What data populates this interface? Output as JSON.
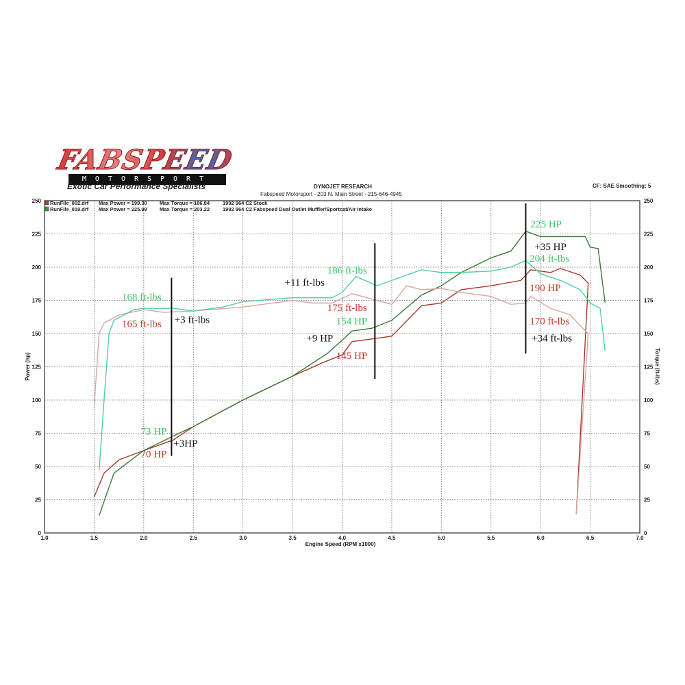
{
  "logo": {
    "brand": "FABSPEED",
    "sub": "MOTORSPORT",
    "tagline": "Exotic Car Performance Specialists"
  },
  "header": {
    "title": "DYNOJET RESEARCH",
    "address": "Fabspeed Motorsport - 203 N. Main Street - 215-646-4945",
    "settings": "CF: SAE  Smoothing: 5"
  },
  "chart_data": {
    "type": "line",
    "xlabel": "Engine Speed (RPM x1000)",
    "ylabel": "Power (hp)",
    "y2label": "Torque (ft-lbs)",
    "xlim": [
      1.0,
      7.0
    ],
    "ylim": [
      0,
      250
    ],
    "y2lim": [
      0,
      250
    ],
    "xticks": [
      "1.0",
      "1.5",
      "2.0",
      "2.5",
      "3.0",
      "3.5",
      "4.0",
      "4.5",
      "5.0",
      "5.5",
      "6.0",
      "6.5",
      "7.0"
    ],
    "yticks": [
      "0",
      "25",
      "50",
      "75",
      "100",
      "125",
      "150",
      "175",
      "200",
      "225",
      "250"
    ],
    "grid": true,
    "legend": [
      {
        "file": "RunFile_002.drf",
        "power": "Max Power = 199.30",
        "torque": "Max Torque = 186.84",
        "desc": "1992 964 C2 Stock",
        "color": "#c0392b"
      },
      {
        "file": "RunFile_019.drf",
        "power": "Max Power = 225.99",
        "torque": "Max Torque = 203.22",
        "desc": "1992 964 C2 Fabspeed Dual Outlet Muffler/Sportcat/Air Intake",
        "color": "#27a844"
      }
    ],
    "series": [
      {
        "key": "stock-power",
        "color": "#a8392c",
        "x": [
          1.5,
          1.6,
          1.75,
          2.0,
          2.3,
          2.5,
          3.0,
          3.5,
          3.8,
          4.0,
          4.1,
          4.3,
          4.5,
          4.8,
          5.0,
          5.2,
          5.5,
          5.8,
          5.9,
          6.1,
          6.2,
          6.4,
          6.48,
          6.36
        ],
        "y": [
          27,
          45,
          55,
          62,
          70,
          80,
          100,
          118,
          128,
          134,
          144,
          146,
          148,
          171,
          173,
          183,
          186,
          190,
          198,
          196,
          199,
          194,
          188,
          14
        ]
      },
      {
        "key": "mod-power",
        "color": "#3d7a3a",
        "x": [
          1.55,
          1.7,
          2.0,
          2.3,
          2.5,
          3.0,
          3.5,
          3.85,
          4.0,
          4.1,
          4.3,
          4.5,
          4.8,
          5.0,
          5.2,
          5.5,
          5.7,
          5.85,
          6.0,
          6.3,
          6.45,
          6.5,
          6.58,
          6.65
        ],
        "y": [
          13,
          45,
          62,
          73,
          80,
          100,
          118,
          135,
          145,
          152,
          154,
          160,
          179,
          186,
          196,
          207,
          212,
          227,
          223,
          223,
          223,
          215,
          214,
          173
        ]
      },
      {
        "key": "stock-torque",
        "color": "#d9a6a0",
        "x": [
          1.5,
          1.55,
          1.6,
          1.75,
          2.0,
          2.2,
          2.5,
          3.0,
          3.5,
          3.7,
          3.9,
          4.1,
          4.3,
          4.5,
          4.65,
          4.8,
          5.0,
          5.2,
          5.5,
          5.7,
          5.85,
          5.9,
          6.1,
          6.3,
          6.45,
          6.48,
          6.36
        ],
        "y": [
          95,
          150,
          158,
          164,
          168,
          166,
          167,
          170,
          175,
          173,
          173,
          180,
          176,
          172,
          186,
          183,
          184,
          181,
          178,
          172,
          173,
          178,
          169,
          164,
          152,
          150,
          14
        ]
      },
      {
        "key": "mod-torque",
        "color": "#4fd1a0",
        "x": [
          1.55,
          1.6,
          1.65,
          1.7,
          1.9,
          2.0,
          2.3,
          2.5,
          2.8,
          3.0,
          3.5,
          3.9,
          4.0,
          4.14,
          4.35,
          4.5,
          4.8,
          5.0,
          5.2,
          5.5,
          5.7,
          5.85,
          6.0,
          6.2,
          6.4,
          6.5,
          6.6,
          6.65
        ],
        "y": [
          47,
          100,
          150,
          160,
          168,
          169,
          169,
          167,
          170,
          174,
          177,
          177,
          181,
          193,
          186,
          190,
          198,
          196,
          196,
          197,
          200,
          205,
          195,
          190,
          183,
          173,
          169,
          137
        ]
      }
    ],
    "markers": [
      {
        "x": 2.28,
        "from": 58,
        "to": 192
      },
      {
        "x": 4.33,
        "from": 116,
        "to": 218
      },
      {
        "x": 5.85,
        "from": 135,
        "to": 248
      }
    ],
    "annotations": [
      {
        "text": "168 ft-lbs",
        "x": 1.78,
        "y": 175,
        "color": "#3cc46a"
      },
      {
        "text": "165 ft-lbs",
        "x": 1.78,
        "y": 155,
        "color": "#c0392b"
      },
      {
        "text": "+3 ft-lbs",
        "x": 2.31,
        "y": 158,
        "color": "#111111"
      },
      {
        "text": "73 HP",
        "x": 1.97,
        "y": 74,
        "color": "#3cc46a"
      },
      {
        "text": "70 HP",
        "x": 1.97,
        "y": 57,
        "color": "#c0392b"
      },
      {
        "text": "+3HP",
        "x": 2.3,
        "y": 65,
        "color": "#111111"
      },
      {
        "text": "+11 ft-lbs",
        "x": 3.42,
        "y": 186,
        "color": "#111111"
      },
      {
        "text": "186 ft-lbs",
        "x": 3.85,
        "y": 195,
        "color": "#3cc46a"
      },
      {
        "text": "175 ft-lbs",
        "x": 3.85,
        "y": 167,
        "color": "#c0392b"
      },
      {
        "text": "154 HP",
        "x": 3.94,
        "y": 157,
        "color": "#3cc46a"
      },
      {
        "text": "+9 HP",
        "x": 3.64,
        "y": 144,
        "color": "#111111"
      },
      {
        "text": "145 HP",
        "x": 3.94,
        "y": 131,
        "color": "#c0392b"
      },
      {
        "text": "225 HP",
        "x": 5.9,
        "y": 230,
        "color": "#3cc46a"
      },
      {
        "text": "+35 HP",
        "x": 5.94,
        "y": 213,
        "color": "#111111"
      },
      {
        "text": "204 ft-lbs",
        "x": 5.89,
        "y": 204,
        "color": "#3cc46a"
      },
      {
        "text": "190 HP",
        "x": 5.89,
        "y": 182,
        "color": "#c0392b"
      },
      {
        "text": "170 ft-lbs",
        "x": 5.89,
        "y": 157,
        "color": "#c0392b"
      },
      {
        "text": "+34 ft-lbs",
        "x": 5.91,
        "y": 144,
        "color": "#111111"
      }
    ]
  }
}
